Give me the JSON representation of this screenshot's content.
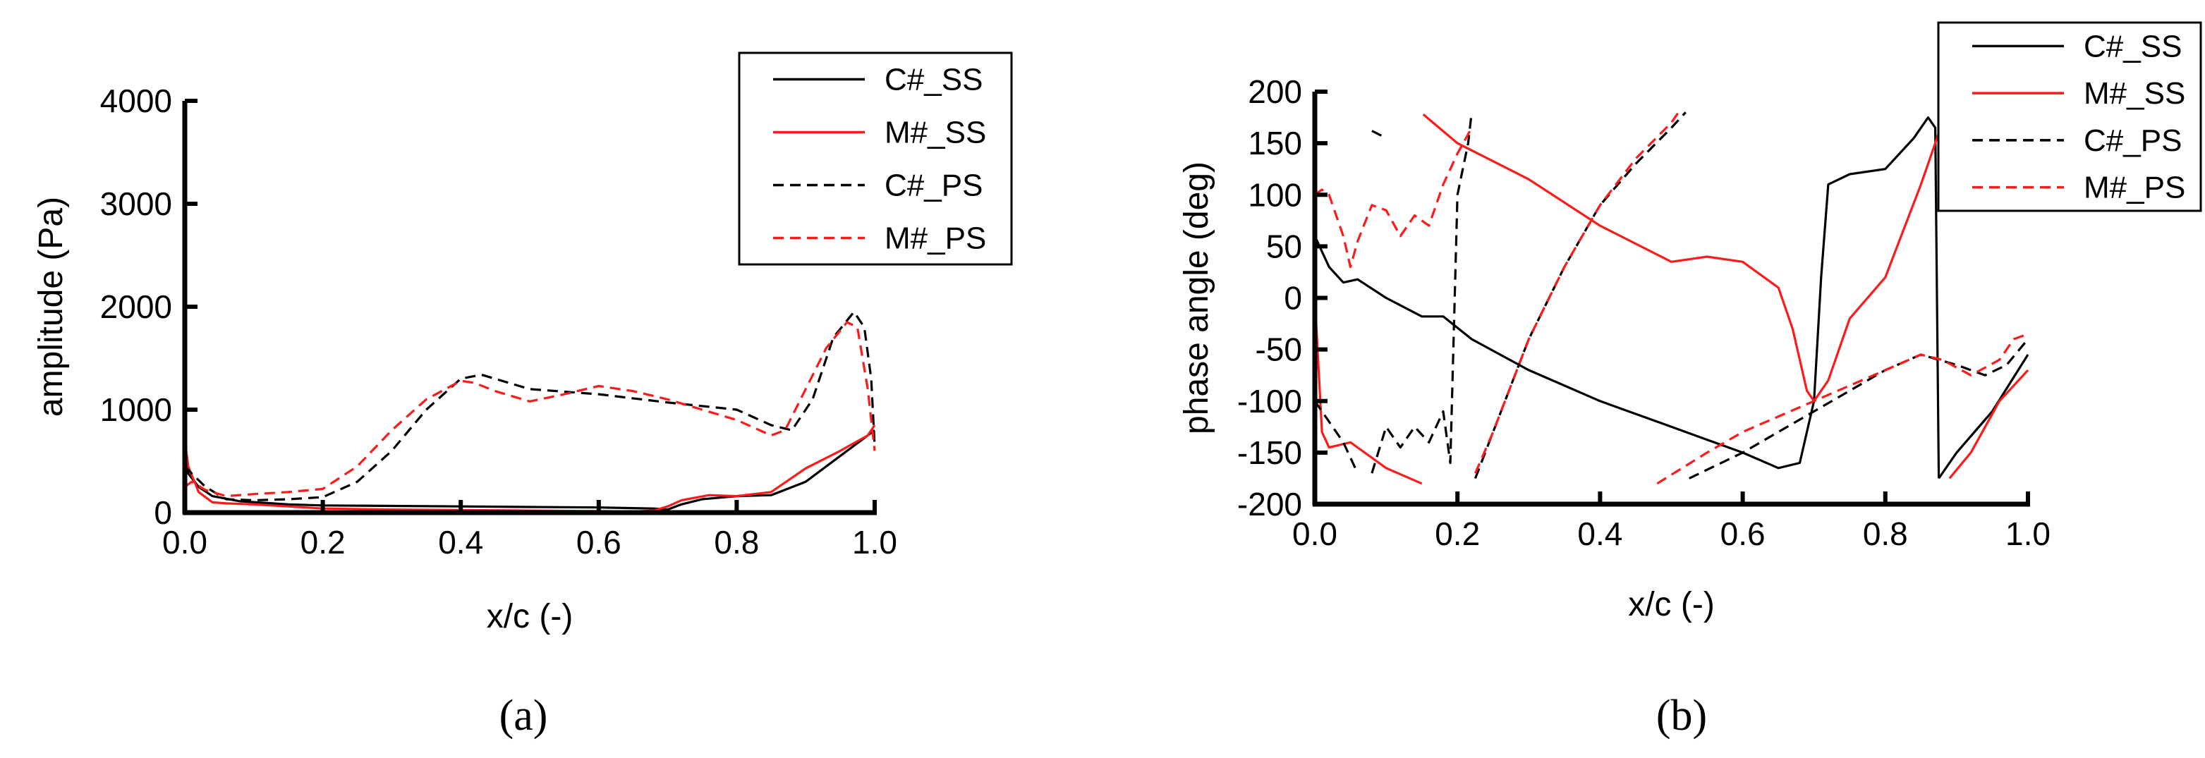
{
  "colors": {
    "black": "#000000",
    "red": "#ff1a1a",
    "axis": "#000000"
  },
  "chart_data": [
    {
      "id": "a",
      "type": "line",
      "panel_label": "(a)",
      "title": "",
      "xlabel": "x/c (-)",
      "ylabel": "amplitude (Pa)",
      "xlim": [
        0,
        1
      ],
      "ylim": [
        0,
        4000
      ],
      "xticks": [
        0.0,
        0.2,
        0.4,
        0.6,
        0.8,
        1.0
      ],
      "xtick_labels": [
        "0.0",
        "0.2",
        "0.4",
        "0.6",
        "0.8",
        "1.0"
      ],
      "yticks": [
        0,
        1000,
        2000,
        3000,
        4000
      ],
      "ytick_labels": [
        "0",
        "1000",
        "2000",
        "3000",
        "4000"
      ],
      "legend_position": "top-right",
      "series": [
        {
          "name": "C#_SS",
          "color": "#000000",
          "dash": "solid",
          "x": [
            0.0,
            0.005,
            0.02,
            0.04,
            0.08,
            0.15,
            0.2,
            0.3,
            0.4,
            0.5,
            0.6,
            0.68,
            0.7,
            0.72,
            0.75,
            0.8,
            0.85,
            0.9,
            0.95,
            0.98,
            1.0
          ],
          "y": [
            500,
            380,
            250,
            160,
            110,
            80,
            70,
            65,
            60,
            55,
            50,
            40,
            30,
            80,
            130,
            160,
            170,
            300,
            550,
            700,
            800
          ]
        },
        {
          "name": "M#_SS",
          "color": "#ff1a1a",
          "dash": "solid",
          "x": [
            0.0,
            0.005,
            0.02,
            0.04,
            0.06,
            0.1,
            0.15,
            0.2,
            0.3,
            0.4,
            0.5,
            0.6,
            0.65,
            0.68,
            0.7,
            0.72,
            0.76,
            0.8,
            0.85,
            0.9,
            0.95,
            0.99,
            1.0
          ],
          "y": [
            700,
            450,
            200,
            100,
            90,
            80,
            60,
            40,
            30,
            25,
            20,
            15,
            10,
            20,
            60,
            120,
            170,
            160,
            200,
            430,
            600,
            750,
            850
          ]
        },
        {
          "name": "C#_PS",
          "color": "#000000",
          "dash": "dashed",
          "x": [
            0.0,
            0.01,
            0.03,
            0.06,
            0.1,
            0.15,
            0.2,
            0.25,
            0.3,
            0.35,
            0.4,
            0.43,
            0.5,
            0.6,
            0.7,
            0.8,
            0.85,
            0.88,
            0.91,
            0.94,
            0.97,
            0.985,
            0.995,
            1.0
          ],
          "y": [
            450,
            380,
            250,
            130,
            120,
            130,
            150,
            300,
            600,
            1000,
            1300,
            1340,
            1200,
            1150,
            1070,
            1000,
            850,
            800,
            1100,
            1700,
            1950,
            1800,
            1300,
            650
          ]
        },
        {
          "name": "M#_PS",
          "color": "#ff1a1a",
          "dash": "dashed",
          "x": [
            0.0,
            0.01,
            0.03,
            0.06,
            0.1,
            0.15,
            0.2,
            0.25,
            0.3,
            0.35,
            0.4,
            0.42,
            0.45,
            0.5,
            0.55,
            0.6,
            0.65,
            0.7,
            0.75,
            0.8,
            0.85,
            0.87,
            0.9,
            0.93,
            0.96,
            0.975,
            0.99,
            1.0
          ],
          "y": [
            250,
            300,
            220,
            160,
            180,
            200,
            230,
            450,
            800,
            1100,
            1280,
            1260,
            1180,
            1080,
            1150,
            1230,
            1180,
            1100,
            1000,
            900,
            750,
            800,
            1200,
            1600,
            1850,
            1800,
            1200,
            600
          ]
        }
      ]
    },
    {
      "id": "b",
      "type": "line",
      "panel_label": "(b)",
      "title": "",
      "xlabel": "x/c (-)",
      "ylabel": "phase angle (deg)",
      "xlim": [
        0,
        1
      ],
      "ylim": [
        -200,
        200
      ],
      "xticks": [
        0.0,
        0.2,
        0.4,
        0.6,
        0.8,
        1.0
      ],
      "xtick_labels": [
        "0.0",
        "0.2",
        "0.4",
        "0.6",
        "0.8",
        "1.0"
      ],
      "yticks": [
        -200,
        -150,
        -100,
        -50,
        0,
        50,
        100,
        150,
        200
      ],
      "ytick_labels": [
        "-200",
        "-150",
        "-100",
        "-50",
        "0",
        "50",
        "100",
        "150",
        "200"
      ],
      "legend_position": "top-right",
      "series": [
        {
          "name": "C#_SS",
          "color": "#000000",
          "dash": "solid",
          "segments": [
            {
              "x": [
                0.0,
                0.02,
                0.04,
                0.06,
                0.1,
                0.15,
                0.18,
                0.22,
                0.3,
                0.4,
                0.5,
                0.6,
                0.65,
                0.68,
                0.7,
                0.71,
                0.72,
                0.75,
                0.8,
                0.84,
                0.86,
                0.87,
                0.875
              ],
              "y": [
                60,
                30,
                15,
                18,
                0,
                -18,
                -18,
                -40,
                -70,
                -100,
                -125,
                -150,
                -165,
                -160,
                -100,
                20,
                110,
                120,
                125,
                155,
                175,
                165,
                -175
              ]
            },
            {
              "x": [
                0.875,
                0.9,
                0.95,
                1.0
              ],
              "y": [
                -175,
                -150,
                -110,
                -55
              ]
            }
          ]
        },
        {
          "name": "M#_SS",
          "color": "#ff1a1a",
          "dash": "solid",
          "segments": [
            {
              "x": [
                0.0,
                0.01,
                0.02,
                0.05,
                0.08,
                0.1,
                0.15
              ],
              "y": [
                0,
                -130,
                -145,
                -140,
                -155,
                -165,
                -180
              ]
            },
            {
              "x": [
                0.152,
                0.2,
                0.3,
                0.4,
                0.5,
                0.55,
                0.6,
                0.65,
                0.67,
                0.69,
                0.7,
                0.72,
                0.75,
                0.8,
                0.85,
                0.875,
                0.885,
                0.888
              ],
              "y": [
                178,
                150,
                115,
                70,
                35,
                40,
                35,
                10,
                -30,
                -90,
                -100,
                -80,
                -20,
                20,
                110,
                160,
                170,
                160
              ]
            },
            {
              "x": [
                0.89,
                0.92,
                0.96,
                1.0
              ],
              "y": [
                -175,
                -150,
                -100,
                -70
              ]
            }
          ]
        },
        {
          "name": "C#_PS",
          "color": "#000000",
          "dash": "dashed",
          "segments": [
            {
              "x": [
                0.0,
                0.02,
                0.04,
                0.06
              ],
              "y": [
                -100,
                -120,
                -140,
                -170
              ]
            },
            {
              "x": [
                0.08,
                0.1
              ],
              "y": [
                162,
                155
              ]
            },
            {
              "x": [
                0.08,
                0.1,
                0.12,
                0.14,
                0.16,
                0.18,
                0.19,
                0.2,
                0.215,
                0.22
              ],
              "y": [
                -170,
                -125,
                -145,
                -125,
                -140,
                -110,
                -160,
                100,
                150,
                180
              ]
            },
            {
              "x": [
                0.225,
                0.25,
                0.3,
                0.35,
                0.4,
                0.45,
                0.5,
                0.52
              ],
              "y": [
                -175,
                -130,
                -40,
                30,
                90,
                130,
                165,
                180
              ]
            },
            {
              "x": [
                0.525,
                0.6,
                0.7,
                0.8,
                0.85,
                0.9,
                0.94,
                0.97,
                1.0
              ],
              "y": [
                -175,
                -150,
                -110,
                -70,
                -55,
                -65,
                -75,
                -65,
                -40
              ]
            }
          ]
        },
        {
          "name": "M#_PS",
          "color": "#ff1a1a",
          "dash": "dashed",
          "segments": [
            {
              "x": [
                0.0,
                0.01,
                0.02,
                0.04,
                0.05,
                0.06,
                0.08,
                0.1,
                0.12,
                0.14,
                0.16,
                0.18,
                0.2,
                0.22
              ],
              "y": [
                100,
                105,
                100,
                60,
                30,
                55,
                90,
                85,
                60,
                80,
                70,
                110,
                140,
                165
              ]
            },
            {
              "x": [
                0.225,
                0.25,
                0.3,
                0.35,
                0.4,
                0.45,
                0.5,
                0.51
              ],
              "y": [
                -170,
                -130,
                -40,
                30,
                90,
                135,
                170,
                180
              ]
            },
            {
              "x": [
                0.48,
                0.55,
                0.6,
                0.7,
                0.8,
                0.85,
                0.88,
                0.92,
                0.96,
                0.98,
                1.0
              ],
              "y": [
                -180,
                -150,
                -130,
                -100,
                -70,
                -55,
                -60,
                -75,
                -60,
                -40,
                -35
              ]
            }
          ]
        }
      ]
    }
  ]
}
